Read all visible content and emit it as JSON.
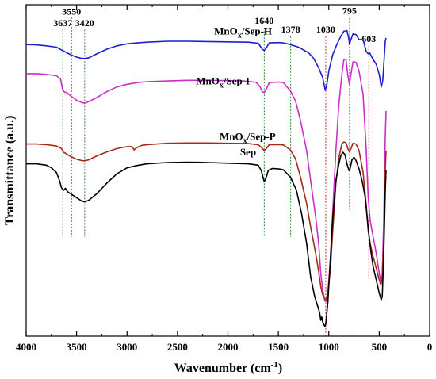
{
  "chart_data": {
    "type": "line",
    "title": "",
    "xlabel": "Wavenumber (cm",
    "xlabel_sup": "-1",
    "xlabel_close": ")",
    "ylabel": "Transmittance (a.u.)",
    "xlim": [
      4000,
      0
    ],
    "ylim": [
      0,
      1
    ],
    "x_ticks": [
      4000,
      3500,
      3000,
      2500,
      2000,
      1500,
      1000,
      500,
      0
    ],
    "x_tick_labels": [
      "4000",
      "3500",
      "3000",
      "2500",
      "2000",
      "1500",
      "1000",
      "500",
      "0"
    ],
    "series": [
      {
        "name": "MnOx/Sep-H",
        "label_base": "MnO",
        "label_sub": "x",
        "label_rest": "/Sep-H",
        "label_at": [
          1850,
          0.91
        ],
        "color": "#1f1fcf",
        "points": [
          [
            4000,
            0.88
          ],
          [
            3900,
            0.879
          ],
          [
            3800,
            0.876
          ],
          [
            3700,
            0.872
          ],
          [
            3640,
            0.862
          ],
          [
            3620,
            0.859
          ],
          [
            3590,
            0.854
          ],
          [
            3550,
            0.848
          ],
          [
            3500,
            0.842
          ],
          [
            3450,
            0.838
          ],
          [
            3420,
            0.838
          ],
          [
            3380,
            0.84
          ],
          [
            3300,
            0.852
          ],
          [
            3200,
            0.866
          ],
          [
            3100,
            0.876
          ],
          [
            3000,
            0.882
          ],
          [
            2900,
            0.885
          ],
          [
            2800,
            0.887
          ],
          [
            2600,
            0.89
          ],
          [
            2400,
            0.89
          ],
          [
            2200,
            0.889
          ],
          [
            2000,
            0.888
          ],
          [
            1800,
            0.887
          ],
          [
            1700,
            0.884
          ],
          [
            1660,
            0.866
          ],
          [
            1640,
            0.862
          ],
          [
            1620,
            0.87
          ],
          [
            1590,
            0.885
          ],
          [
            1500,
            0.886
          ],
          [
            1450,
            0.885
          ],
          [
            1380,
            0.88
          ],
          [
            1300,
            0.872
          ],
          [
            1200,
            0.855
          ],
          [
            1150,
            0.838
          ],
          [
            1100,
            0.81
          ],
          [
            1060,
            0.78
          ],
          [
            1035,
            0.742
          ],
          [
            1020,
            0.758
          ],
          [
            1000,
            0.8
          ],
          [
            960,
            0.85
          ],
          [
            920,
            0.88
          ],
          [
            880,
            0.905
          ],
          [
            850,
            0.92
          ],
          [
            820,
            0.922
          ],
          [
            800,
            0.895
          ],
          [
            795,
            0.88
          ],
          [
            780,
            0.895
          ],
          [
            760,
            0.912
          ],
          [
            730,
            0.91
          ],
          [
            700,
            0.895
          ],
          [
            660,
            0.895
          ],
          [
            630,
            0.86
          ],
          [
            610,
            0.852
          ],
          [
            595,
            0.855
          ],
          [
            570,
            0.84
          ],
          [
            530,
            0.82
          ],
          [
            500,
            0.79
          ],
          [
            480,
            0.752
          ],
          [
            465,
            0.77
          ],
          [
            450,
            0.84
          ],
          [
            440,
            0.89
          ],
          [
            432,
            0.9
          ]
        ]
      },
      {
        "name": "MnOx/Sep-I",
        "label_base": "MnO",
        "label_sub": "x",
        "label_rest": "/Sep-I",
        "label_at": [
          2050,
          0.76
        ],
        "color": "#cc2ecc",
        "points": [
          [
            4000,
            0.792
          ],
          [
            3900,
            0.792
          ],
          [
            3800,
            0.79
          ],
          [
            3700,
            0.786
          ],
          [
            3660,
            0.776
          ],
          [
            3640,
            0.746
          ],
          [
            3620,
            0.736
          ],
          [
            3600,
            0.736
          ],
          [
            3570,
            0.728
          ],
          [
            3550,
            0.723
          ],
          [
            3500,
            0.712
          ],
          [
            3450,
            0.705
          ],
          [
            3420,
            0.703
          ],
          [
            3380,
            0.708
          ],
          [
            3300,
            0.72
          ],
          [
            3200,
            0.738
          ],
          [
            3100,
            0.752
          ],
          [
            3000,
            0.76
          ],
          [
            2900,
            0.765
          ],
          [
            2800,
            0.768
          ],
          [
            2600,
            0.77
          ],
          [
            2400,
            0.772
          ],
          [
            2200,
            0.772
          ],
          [
            2000,
            0.771
          ],
          [
            1850,
            0.77
          ],
          [
            1720,
            0.766
          ],
          [
            1680,
            0.752
          ],
          [
            1660,
            0.738
          ],
          [
            1640,
            0.735
          ],
          [
            1620,
            0.745
          ],
          [
            1590,
            0.765
          ],
          [
            1500,
            0.767
          ],
          [
            1450,
            0.765
          ],
          [
            1380,
            0.74
          ],
          [
            1330,
            0.71
          ],
          [
            1280,
            0.65
          ],
          [
            1220,
            0.56
          ],
          [
            1180,
            0.47
          ],
          [
            1130,
            0.36
          ],
          [
            1100,
            0.28
          ],
          [
            1080,
            0.19
          ],
          [
            1060,
            0.14
          ],
          [
            1040,
            0.108
          ],
          [
            1030,
            0.104
          ],
          [
            1010,
            0.13
          ],
          [
            985,
            0.23
          ],
          [
            960,
            0.38
          ],
          [
            930,
            0.56
          ],
          [
            900,
            0.7
          ],
          [
            870,
            0.79
          ],
          [
            850,
            0.835
          ],
          [
            830,
            0.835
          ],
          [
            810,
            0.785
          ],
          [
            795,
            0.76
          ],
          [
            780,
            0.79
          ],
          [
            760,
            0.828
          ],
          [
            730,
            0.826
          ],
          [
            700,
            0.8
          ],
          [
            660,
            0.73
          ],
          [
            630,
            0.57
          ],
          [
            610,
            0.42
          ],
          [
            590,
            0.35
          ],
          [
            560,
            0.3
          ],
          [
            530,
            0.25
          ],
          [
            500,
            0.19
          ],
          [
            485,
            0.165
          ],
          [
            470,
            0.185
          ],
          [
            455,
            0.35
          ],
          [
            440,
            0.6
          ],
          [
            432,
            0.68
          ]
        ]
      },
      {
        "name": "MnOx/Sep-P",
        "label_base": "MnO",
        "label_sub": "x",
        "label_rest": "/Sep-P",
        "label_at": [
          1805,
          0.592
        ],
        "color": "#a52a18",
        "points": [
          [
            4000,
            0.58
          ],
          [
            3900,
            0.58
          ],
          [
            3800,
            0.578
          ],
          [
            3700,
            0.574
          ],
          [
            3650,
            0.566
          ],
          [
            3630,
            0.555
          ],
          [
            3610,
            0.552
          ],
          [
            3580,
            0.546
          ],
          [
            3550,
            0.541
          ],
          [
            3500,
            0.534
          ],
          [
            3450,
            0.53
          ],
          [
            3420,
            0.529
          ],
          [
            3380,
            0.532
          ],
          [
            3300,
            0.544
          ],
          [
            3200,
            0.556
          ],
          [
            3100,
            0.566
          ],
          [
            3000,
            0.572
          ],
          [
            2950,
            0.572
          ],
          [
            2930,
            0.562
          ],
          [
            2910,
            0.568
          ],
          [
            2850,
            0.576
          ],
          [
            2800,
            0.578
          ],
          [
            2600,
            0.582
          ],
          [
            2400,
            0.583
          ],
          [
            2200,
            0.583
          ],
          [
            2000,
            0.582
          ],
          [
            1800,
            0.581
          ],
          [
            1700,
            0.578
          ],
          [
            1670,
            0.57
          ],
          [
            1640,
            0.56
          ],
          [
            1620,
            0.566
          ],
          [
            1590,
            0.578
          ],
          [
            1500,
            0.578
          ],
          [
            1450,
            0.577
          ],
          [
            1380,
            0.562
          ],
          [
            1330,
            0.535
          ],
          [
            1280,
            0.48
          ],
          [
            1220,
            0.4
          ],
          [
            1180,
            0.33
          ],
          [
            1130,
            0.25
          ],
          [
            1100,
            0.195
          ],
          [
            1080,
            0.15
          ],
          [
            1060,
            0.125
          ],
          [
            1040,
            0.112
          ],
          [
            1030,
            0.11
          ],
          [
            1010,
            0.13
          ],
          [
            985,
            0.2
          ],
          [
            960,
            0.32
          ],
          [
            930,
            0.46
          ],
          [
            900,
            0.54
          ],
          [
            870,
            0.58
          ],
          [
            850,
            0.586
          ],
          [
            830,
            0.584
          ],
          [
            810,
            0.565
          ],
          [
            795,
            0.556
          ],
          [
            780,
            0.566
          ],
          [
            760,
            0.582
          ],
          [
            730,
            0.58
          ],
          [
            700,
            0.56
          ],
          [
            660,
            0.495
          ],
          [
            630,
            0.4
          ],
          [
            610,
            0.32
          ],
          [
            590,
            0.28
          ],
          [
            560,
            0.24
          ],
          [
            530,
            0.205
          ],
          [
            500,
            0.17
          ],
          [
            485,
            0.155
          ],
          [
            470,
            0.17
          ],
          [
            455,
            0.3
          ],
          [
            440,
            0.5
          ],
          [
            432,
            0.56
          ]
        ]
      },
      {
        "name": "Sep",
        "label_base": "Sep",
        "label_sub": "",
        "label_rest": "",
        "label_at": [
          1800,
          0.546
        ],
        "color": "#000000",
        "points": [
          [
            4000,
            0.52
          ],
          [
            3900,
            0.52
          ],
          [
            3800,
            0.516
          ],
          [
            3750,
            0.508
          ],
          [
            3700,
            0.494
          ],
          [
            3670,
            0.47
          ],
          [
            3650,
            0.448
          ],
          [
            3630,
            0.44
          ],
          [
            3610,
            0.446
          ],
          [
            3590,
            0.436
          ],
          [
            3560,
            0.43
          ],
          [
            3500,
            0.418
          ],
          [
            3450,
            0.408
          ],
          [
            3420,
            0.405
          ],
          [
            3380,
            0.41
          ],
          [
            3300,
            0.43
          ],
          [
            3200,
            0.462
          ],
          [
            3100,
            0.49
          ],
          [
            3000,
            0.508
          ],
          [
            2900,
            0.515
          ],
          [
            2800,
            0.52
          ],
          [
            2600,
            0.524
          ],
          [
            2400,
            0.525
          ],
          [
            2200,
            0.524
          ],
          [
            2000,
            0.522
          ],
          [
            1800,
            0.52
          ],
          [
            1700,
            0.516
          ],
          [
            1670,
            0.5
          ],
          [
            1640,
            0.466
          ],
          [
            1620,
            0.48
          ],
          [
            1600,
            0.5
          ],
          [
            1560,
            0.506
          ],
          [
            1500,
            0.505
          ],
          [
            1450,
            0.502
          ],
          [
            1380,
            0.48
          ],
          [
            1320,
            0.44
          ],
          [
            1270,
            0.37
          ],
          [
            1220,
            0.28
          ],
          [
            1180,
            0.18
          ],
          [
            1140,
            0.12
          ],
          [
            1110,
            0.09
          ],
          [
            1090,
            0.07
          ],
          [
            1080,
            0.048
          ],
          [
            1070,
            0.058
          ],
          [
            1060,
            0.042
          ],
          [
            1040,
            0.03
          ],
          [
            1030,
            0.036
          ],
          [
            1010,
            0.1
          ],
          [
            990,
            0.2
          ],
          [
            960,
            0.36
          ],
          [
            930,
            0.47
          ],
          [
            900,
            0.52
          ],
          [
            880,
            0.545
          ],
          [
            860,
            0.555
          ],
          [
            840,
            0.548
          ],
          [
            820,
            0.52
          ],
          [
            800,
            0.5
          ],
          [
            790,
            0.505
          ],
          [
            770,
            0.532
          ],
          [
            750,
            0.54
          ],
          [
            730,
            0.53
          ],
          [
            700,
            0.505
          ],
          [
            670,
            0.47
          ],
          [
            640,
            0.42
          ],
          [
            620,
            0.36
          ],
          [
            600,
            0.3
          ],
          [
            580,
            0.25
          ],
          [
            560,
            0.21
          ],
          [
            530,
            0.17
          ],
          [
            500,
            0.13
          ],
          [
            480,
            0.11
          ],
          [
            470,
            0.12
          ],
          [
            455,
            0.25
          ],
          [
            440,
            0.44
          ],
          [
            432,
            0.5
          ]
        ]
      }
    ],
    "annotations": [
      {
        "label": "3637",
        "x": 3637,
        "color": "#2a8a2a",
        "y_top": 0.925,
        "y_bottom": 0.3,
        "label_y": 0.936
      },
      {
        "label": "3550",
        "x": 3550,
        "color": "#2a8a2a",
        "y_top": 0.962,
        "y_bottom": 0.3,
        "label_y": 0.97
      },
      {
        "label": "3420",
        "x": 3420,
        "color": "#2a8a2a",
        "y_top": 0.925,
        "y_bottom": 0.3,
        "label_y": 0.936
      },
      {
        "label": "1640",
        "x": 1640,
        "color": "#2a8a2a",
        "y_top": 0.93,
        "y_bottom": 0.3,
        "label_y": 0.942
      },
      {
        "label": "1378",
        "x": 1378,
        "color": "#2a8a2a",
        "y_top": 0.905,
        "y_bottom": 0.3,
        "label_y": 0.916
      },
      {
        "label": "1030",
        "x": 1030,
        "color": "#cc2222",
        "y_top": 0.905,
        "y_bottom": 0.0,
        "label_y": 0.916
      },
      {
        "label": "795",
        "x": 795,
        "color": "#2a8a2a",
        "y_top": 0.96,
        "y_bottom": 0.38,
        "label_y": 0.972
      },
      {
        "label": "603",
        "x": 603,
        "color": "#cc2222",
        "y_top": 0.876,
        "y_bottom": 0.17,
        "label_y": 0.888
      }
    ]
  }
}
